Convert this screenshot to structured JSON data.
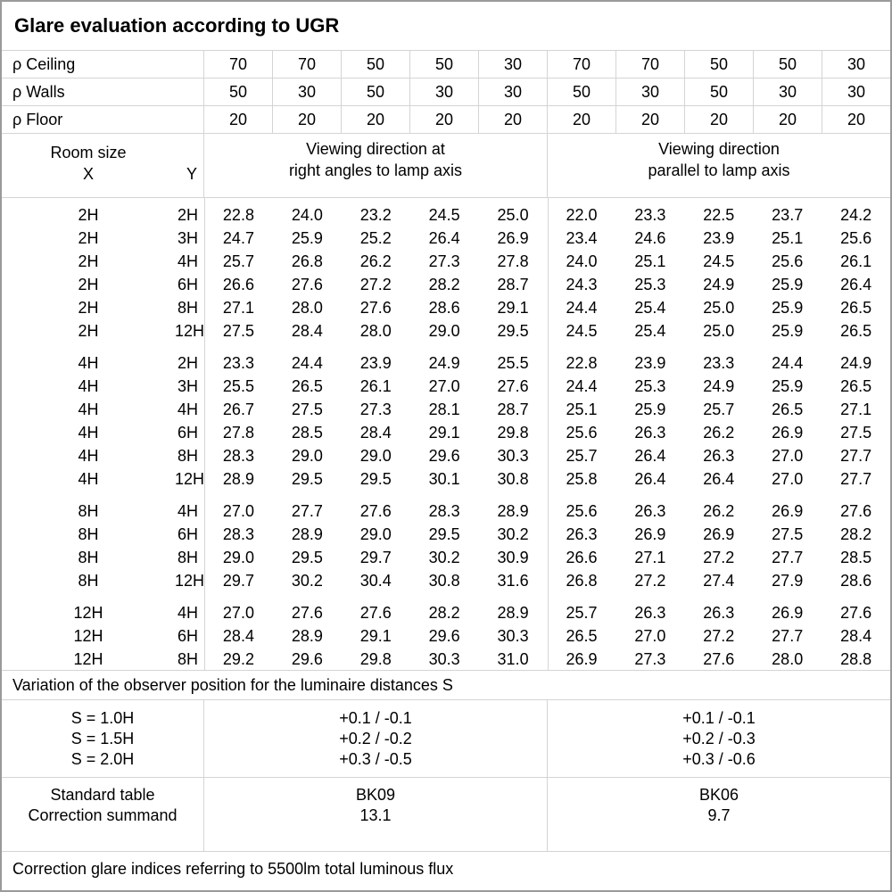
{
  "title": "Glare evaluation according to UGR",
  "colors": {
    "grid_line": "#d4d4d4",
    "outer_frame": "#9a9a9a",
    "text": "#000000",
    "background": "#ffffff"
  },
  "header": {
    "rows": [
      {
        "label": "ρ Ceiling",
        "values": [
          "70",
          "70",
          "50",
          "50",
          "30",
          "70",
          "70",
          "50",
          "50",
          "30"
        ]
      },
      {
        "label": "ρ Walls",
        "values": [
          "50",
          "30",
          "50",
          "30",
          "30",
          "50",
          "30",
          "50",
          "30",
          "30"
        ]
      },
      {
        "label": "ρ Floor",
        "values": [
          "20",
          "20",
          "20",
          "20",
          "20",
          "20",
          "20",
          "20",
          "20",
          "20"
        ]
      }
    ]
  },
  "room_size": {
    "label": "Room size",
    "x_label": "X",
    "y_label": "Y"
  },
  "groups": [
    {
      "line1": "Viewing direction at",
      "line2": "right angles to lamp axis"
    },
    {
      "line1": "Viewing direction",
      "line2": "parallel to lamp axis"
    }
  ],
  "chart_data": {
    "type": "table"
  },
  "data_blocks": [
    {
      "rows": [
        {
          "x": "2H",
          "y": "2H",
          "right_angles": [
            "22.8",
            "24.0",
            "23.2",
            "24.5",
            "25.0"
          ],
          "parallel": [
            "22.0",
            "23.3",
            "22.5",
            "23.7",
            "24.2"
          ]
        },
        {
          "x": "2H",
          "y": "3H",
          "right_angles": [
            "24.7",
            "25.9",
            "25.2",
            "26.4",
            "26.9"
          ],
          "parallel": [
            "23.4",
            "24.6",
            "23.9",
            "25.1",
            "25.6"
          ]
        },
        {
          "x": "2H",
          "y": "4H",
          "right_angles": [
            "25.7",
            "26.8",
            "26.2",
            "27.3",
            "27.8"
          ],
          "parallel": [
            "24.0",
            "25.1",
            "24.5",
            "25.6",
            "26.1"
          ]
        },
        {
          "x": "2H",
          "y": "6H",
          "right_angles": [
            "26.6",
            "27.6",
            "27.2",
            "28.2",
            "28.7"
          ],
          "parallel": [
            "24.3",
            "25.3",
            "24.9",
            "25.9",
            "26.4"
          ]
        },
        {
          "x": "2H",
          "y": "8H",
          "right_angles": [
            "27.1",
            "28.0",
            "27.6",
            "28.6",
            "29.1"
          ],
          "parallel": [
            "24.4",
            "25.4",
            "25.0",
            "25.9",
            "26.5"
          ]
        },
        {
          "x": "2H",
          "y": "12H",
          "right_angles": [
            "27.5",
            "28.4",
            "28.0",
            "29.0",
            "29.5"
          ],
          "parallel": [
            "24.5",
            "25.4",
            "25.0",
            "25.9",
            "26.5"
          ]
        }
      ]
    },
    {
      "rows": [
        {
          "x": "4H",
          "y": "2H",
          "right_angles": [
            "23.3",
            "24.4",
            "23.9",
            "24.9",
            "25.5"
          ],
          "parallel": [
            "22.8",
            "23.9",
            "23.3",
            "24.4",
            "24.9"
          ]
        },
        {
          "x": "4H",
          "y": "3H",
          "right_angles": [
            "25.5",
            "26.5",
            "26.1",
            "27.0",
            "27.6"
          ],
          "parallel": [
            "24.4",
            "25.3",
            "24.9",
            "25.9",
            "26.5"
          ]
        },
        {
          "x": "4H",
          "y": "4H",
          "right_angles": [
            "26.7",
            "27.5",
            "27.3",
            "28.1",
            "28.7"
          ],
          "parallel": [
            "25.1",
            "25.9",
            "25.7",
            "26.5",
            "27.1"
          ]
        },
        {
          "x": "4H",
          "y": "6H",
          "right_angles": [
            "27.8",
            "28.5",
            "28.4",
            "29.1",
            "29.8"
          ],
          "parallel": [
            "25.6",
            "26.3",
            "26.2",
            "26.9",
            "27.5"
          ]
        },
        {
          "x": "4H",
          "y": "8H",
          "right_angles": [
            "28.3",
            "29.0",
            "29.0",
            "29.6",
            "30.3"
          ],
          "parallel": [
            "25.7",
            "26.4",
            "26.3",
            "27.0",
            "27.7"
          ]
        },
        {
          "x": "4H",
          "y": "12H",
          "right_angles": [
            "28.9",
            "29.5",
            "29.5",
            "30.1",
            "30.8"
          ],
          "parallel": [
            "25.8",
            "26.4",
            "26.4",
            "27.0",
            "27.7"
          ]
        }
      ]
    },
    {
      "rows": [
        {
          "x": "8H",
          "y": "4H",
          "right_angles": [
            "27.0",
            "27.7",
            "27.6",
            "28.3",
            "28.9"
          ],
          "parallel": [
            "25.6",
            "26.3",
            "26.2",
            "26.9",
            "27.6"
          ]
        },
        {
          "x": "8H",
          "y": "6H",
          "right_angles": [
            "28.3",
            "28.9",
            "29.0",
            "29.5",
            "30.2"
          ],
          "parallel": [
            "26.3",
            "26.9",
            "26.9",
            "27.5",
            "28.2"
          ]
        },
        {
          "x": "8H",
          "y": "8H",
          "right_angles": [
            "29.0",
            "29.5",
            "29.7",
            "30.2",
            "30.9"
          ],
          "parallel": [
            "26.6",
            "27.1",
            "27.2",
            "27.7",
            "28.5"
          ]
        },
        {
          "x": "8H",
          "y": "12H",
          "right_angles": [
            "29.7",
            "30.2",
            "30.4",
            "30.8",
            "31.6"
          ],
          "parallel": [
            "26.8",
            "27.2",
            "27.4",
            "27.9",
            "28.6"
          ]
        }
      ]
    },
    {
      "rows": [
        {
          "x": "12H",
          "y": "4H",
          "right_angles": [
            "27.0",
            "27.6",
            "27.6",
            "28.2",
            "28.9"
          ],
          "parallel": [
            "25.7",
            "26.3",
            "26.3",
            "26.9",
            "27.6"
          ]
        },
        {
          "x": "12H",
          "y": "6H",
          "right_angles": [
            "28.4",
            "28.9",
            "29.1",
            "29.6",
            "30.3"
          ],
          "parallel": [
            "26.5",
            "27.0",
            "27.2",
            "27.7",
            "28.4"
          ]
        },
        {
          "x": "12H",
          "y": "8H",
          "right_angles": [
            "29.2",
            "29.6",
            "29.8",
            "30.3",
            "31.0"
          ],
          "parallel": [
            "26.9",
            "27.3",
            "27.6",
            "28.0",
            "28.8"
          ]
        }
      ]
    }
  ],
  "variation_note": "Variation of the observer position for the luminaire distances S",
  "s_section": {
    "labels": [
      "S = 1.0H",
      "S = 1.5H",
      "S = 2.0H"
    ],
    "right_angles": [
      "+0.1 / -0.1",
      "+0.2 / -0.2",
      "+0.3 / -0.5"
    ],
    "parallel": [
      "+0.1 / -0.1",
      "+0.2 / -0.3",
      "+0.3 / -0.6"
    ]
  },
  "summary": {
    "row_labels": [
      "Standard table",
      "Correction summand"
    ],
    "right_angles": [
      "BK09",
      "13.1"
    ],
    "parallel": [
      "BK06",
      "9.7"
    ]
  },
  "footer_note": "Correction glare indices referring to 5500lm total luminous flux"
}
